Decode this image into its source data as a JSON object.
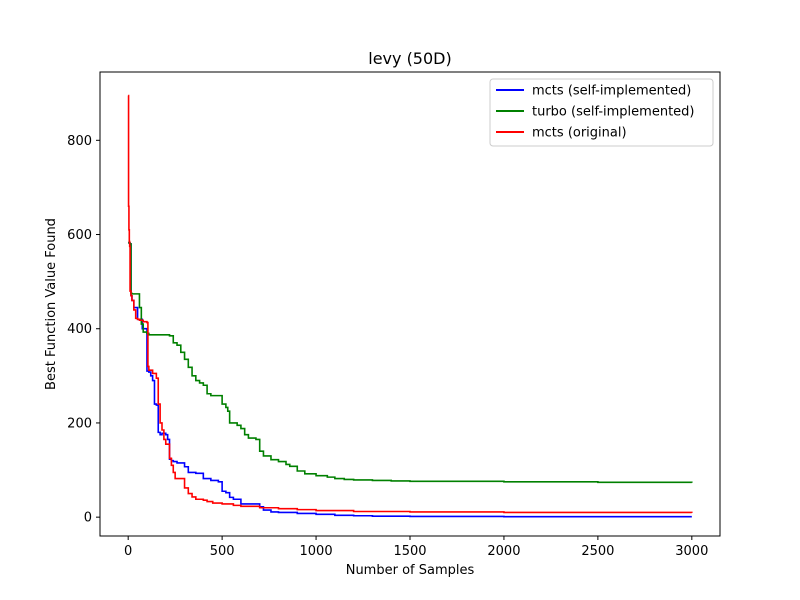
{
  "chart_data": {
    "type": "line",
    "title": "levy (50D)",
    "xlabel": "Number of Samples",
    "ylabel": "Best Function Value Found",
    "xlim": [
      -150,
      3150
    ],
    "ylim": [
      -40,
      945
    ],
    "xticks": [
      0,
      500,
      1000,
      1500,
      2000,
      2500,
      3000
    ],
    "yticks": [
      0,
      200,
      400,
      600,
      800
    ],
    "grid": false,
    "legend_position": "top-right",
    "series": [
      {
        "name": "mcts (self-implemented)",
        "color": "#0000ff",
        "x": [
          0,
          5,
          10,
          15,
          20,
          30,
          50,
          75,
          100,
          110,
          120,
          130,
          140,
          150,
          160,
          170,
          180,
          200,
          210,
          220,
          230,
          240,
          260,
          300,
          320,
          360,
          400,
          440,
          480,
          500,
          520,
          540,
          560,
          600,
          700,
          720,
          760,
          800,
          900,
          1000,
          1100,
          1200,
          1300,
          1500,
          2000,
          2500,
          3000
        ],
        "y": [
          583,
          582,
          580,
          470,
          460,
          445,
          420,
          400,
          310,
          308,
          300,
          290,
          240,
          238,
          180,
          175,
          178,
          175,
          165,
          123,
          120,
          118,
          115,
          107,
          95,
          93,
          82,
          78,
          75,
          55,
          52,
          42,
          38,
          28,
          22,
          15,
          11,
          10,
          8,
          6,
          4,
          3,
          2,
          1.5,
          1,
          1,
          1
        ]
      },
      {
        "name": "turbo (self-implemented)",
        "color": "#008000",
        "x": [
          0,
          5,
          10,
          15,
          20,
          30,
          50,
          60,
          70,
          80,
          100,
          110,
          220,
          240,
          260,
          280,
          300,
          320,
          340,
          360,
          380,
          400,
          420,
          440,
          500,
          520,
          530,
          540,
          580,
          600,
          620,
          640,
          680,
          700,
          720,
          760,
          800,
          840,
          860,
          900,
          940,
          1000,
          1060,
          1100,
          1150,
          1200,
          1300,
          1400,
          1500,
          2000,
          2500,
          3000
        ],
        "y": [
          583,
          582,
          580,
          475,
          474,
          474,
          474,
          445,
          410,
          393,
          390,
          387,
          385,
          370,
          365,
          350,
          335,
          318,
          300,
          290,
          285,
          280,
          262,
          258,
          240,
          233,
          225,
          200,
          195,
          188,
          175,
          168,
          165,
          140,
          130,
          122,
          118,
          112,
          108,
          98,
          92,
          88,
          85,
          82,
          80,
          79,
          78,
          77,
          76,
          75,
          74,
          73
        ]
      },
      {
        "name": "mcts (original)",
        "color": "#ff0000",
        "x": [
          0,
          2,
          4,
          6,
          8,
          10,
          15,
          20,
          30,
          40,
          50,
          60,
          80,
          100,
          105,
          110,
          130,
          150,
          160,
          170,
          180,
          190,
          200,
          220,
          230,
          240,
          250,
          300,
          320,
          340,
          360,
          400,
          420,
          450,
          500,
          560,
          600,
          700,
          800,
          900,
          1000,
          1200,
          1500,
          2000,
          2500,
          3000
        ],
        "y": [
          895,
          660,
          610,
          585,
          575,
          480,
          470,
          460,
          440,
          422,
          420,
          418,
          415,
          413,
          320,
          312,
          305,
          295,
          240,
          200,
          185,
          165,
          155,
          125,
          110,
          95,
          82,
          62,
          50,
          43,
          38,
          36,
          33,
          30,
          28,
          25,
          23,
          20,
          18,
          16,
          14,
          12,
          11,
          10,
          10,
          9
        ]
      }
    ]
  }
}
